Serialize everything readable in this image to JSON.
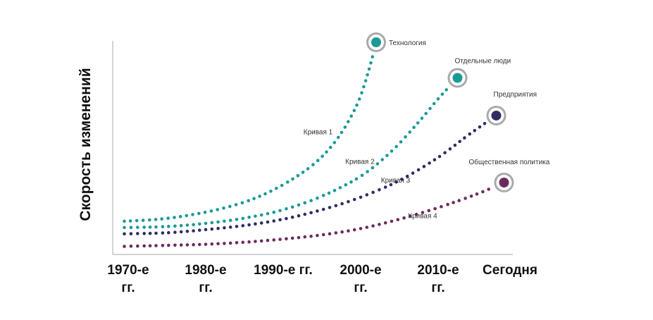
{
  "chart_data": {
    "type": "line",
    "title": "",
    "xlabel": "",
    "ylabel": "Скорость изменений",
    "categories": [
      [
        "1970-е",
        "гг."
      ],
      [
        "1980-е",
        "гг."
      ],
      [
        "1990-е гг."
      ],
      [
        "2000-е",
        "гг."
      ],
      [
        "2010-е",
        "гг."
      ],
      [
        "Сегодня"
      ]
    ],
    "xlim": [
      0,
      5
    ],
    "ylim": [
      0,
      100
    ],
    "grid": false,
    "legend": "none",
    "series": [
      {
        "name": "Технология",
        "curve_label": "Кривая 1",
        "color": "#1a9a94",
        "values": [
          [
            -0.05,
            14.5
          ],
          [
            0.4,
            15.5
          ],
          [
            0.8,
            17.5
          ],
          [
            1.2,
            20.5
          ],
          [
            1.6,
            25
          ],
          [
            2.0,
            32
          ],
          [
            2.4,
            42
          ],
          [
            2.7,
            54
          ],
          [
            2.95,
            70
          ],
          [
            3.1,
            86
          ],
          [
            3.2,
            100
          ]
        ]
      },
      {
        "name": "Отдельные люди",
        "curve_label": "Кривая 2",
        "color": "#1a9a94",
        "values": [
          [
            -0.05,
            11.5
          ],
          [
            0.5,
            12
          ],
          [
            1.0,
            13.5
          ],
          [
            1.5,
            16
          ],
          [
            2.0,
            20
          ],
          [
            2.5,
            26.5
          ],
          [
            3.0,
            36
          ],
          [
            3.4,
            48
          ],
          [
            3.75,
            62
          ],
          [
            4.0,
            73
          ],
          [
            4.25,
            83
          ]
        ]
      },
      {
        "name": "Предприятия",
        "curve_label": "Кривая 3",
        "color": "#2e2d63",
        "values": [
          [
            -0.05,
            8.5
          ],
          [
            0.5,
            9
          ],
          [
            1.0,
            10.5
          ],
          [
            1.5,
            12.5
          ],
          [
            2.0,
            15.5
          ],
          [
            2.5,
            20
          ],
          [
            3.0,
            26
          ],
          [
            3.5,
            34
          ],
          [
            4.0,
            45
          ],
          [
            4.4,
            56
          ],
          [
            4.75,
            65
          ]
        ]
      },
      {
        "name": "Общественная политика",
        "curve_label": "Кривая 4",
        "color": "#6c2b5e",
        "values": [
          [
            -0.05,
            2.5
          ],
          [
            0.5,
            3
          ],
          [
            1.0,
            3.5
          ],
          [
            1.5,
            4.5
          ],
          [
            2.0,
            6
          ],
          [
            2.5,
            8
          ],
          [
            3.0,
            11
          ],
          [
            3.5,
            15.5
          ],
          [
            4.0,
            21
          ],
          [
            4.5,
            27.5
          ],
          [
            4.85,
            33
          ]
        ]
      }
    ]
  }
}
